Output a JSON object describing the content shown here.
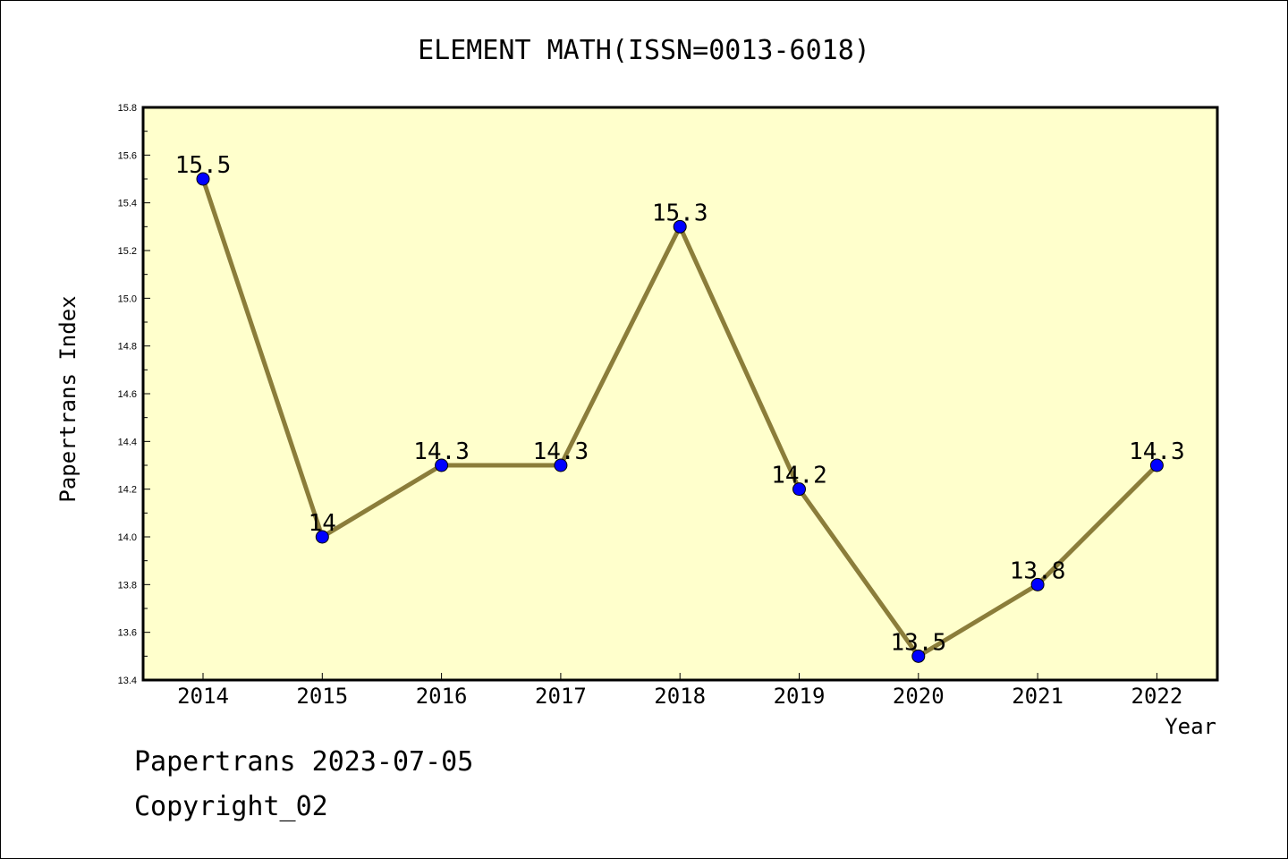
{
  "chart_data": {
    "type": "line",
    "title": "ELEMENT MATH(ISSN=0013-6018)",
    "xlabel": "Year",
    "ylabel": "Papertrans Index",
    "categories": [
      "2014",
      "2015",
      "2016",
      "2017",
      "2018",
      "2019",
      "2020",
      "2021",
      "2022"
    ],
    "values": [
      15.5,
      14,
      14.3,
      14.3,
      15.3,
      14.2,
      13.5,
      13.8,
      14.3
    ],
    "data_labels": [
      "15.5",
      "14",
      "14.3",
      "14.3",
      "15.3",
      "14.2",
      "13.5",
      "13.8",
      "14.3"
    ],
    "ylim": [
      13.4,
      15.8
    ],
    "yticks": [
      "13.4",
      "13.6",
      "13.8",
      "14.0",
      "14.2",
      "14.4",
      "14.6",
      "14.8",
      "15.0",
      "15.2",
      "15.4",
      "15.6",
      "15.8"
    ],
    "grid": false,
    "colors": {
      "line": "#8b7d3a",
      "marker": "#0000ff",
      "plot_bg": "#ffffcc"
    }
  },
  "footer": {
    "line1": "Papertrans 2023-07-05",
    "line2": "Copyright_02"
  }
}
